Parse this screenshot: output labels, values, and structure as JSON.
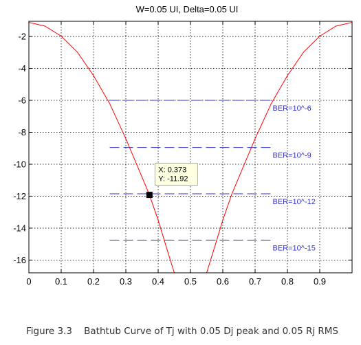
{
  "chart_data": {
    "type": "line",
    "title": "W=0.05 UI, Delta=0.05 UI",
    "xlabel": "",
    "ylabel": "",
    "xlim": [
      0,
      1
    ],
    "ylim": [
      -16.8,
      -1.05
    ],
    "xticks": [
      0,
      0.1,
      0.2,
      0.3,
      0.4,
      0.5,
      0.6,
      0.7,
      0.8,
      0.9
    ],
    "xtick_labels": [
      "0",
      "0.1",
      "0.2",
      "0.3",
      "0.4",
      "0.5",
      "0.6",
      "0.7",
      "0.8",
      "0.9"
    ],
    "yticks": [
      -2,
      -4,
      -6,
      -8,
      -10,
      -12,
      -14,
      -16
    ],
    "ytick_labels": [
      "-2",
      "-4",
      "-6",
      "-8",
      "-10",
      "-12",
      "-14",
      "-16"
    ],
    "grid": true,
    "series": [
      {
        "color": "#ff0000",
        "x": [
          0,
          0.05,
          0.1,
          0.15,
          0.2,
          0.25,
          0.3,
          0.35,
          0.373,
          0.4,
          0.43,
          0.45
        ],
        "y": [
          -1.12,
          -1.35,
          -1.98,
          -2.98,
          -4.45,
          -6.2,
          -8.4,
          -10.8,
          -11.92,
          -13.5,
          -15.5,
          -16.8
        ]
      },
      {
        "color": "#ff0000",
        "x": [
          0.55,
          0.57,
          0.6,
          0.627,
          0.65,
          0.7,
          0.75,
          0.8,
          0.85,
          0.9,
          0.95,
          1.0
        ],
        "y": [
          -16.8,
          -15.5,
          -13.5,
          -11.92,
          -10.8,
          -8.4,
          -6.2,
          -4.45,
          -2.98,
          -1.98,
          -1.35,
          -1.12
        ]
      }
    ],
    "reference_lines": [
      {
        "label": "BER=10^-6",
        "y": -6.0,
        "x_start": 0.25,
        "x_end": 0.75,
        "color": "#3333cc"
      },
      {
        "label": "BER=10^-9",
        "y": -8.95,
        "x_start": 0.25,
        "x_end": 0.75,
        "color": "#3333cc"
      },
      {
        "label": "BER=10^-12",
        "y": -11.85,
        "x_start": 0.25,
        "x_end": 0.75,
        "color": "#3333cc"
      },
      {
        "label": "BER=10^-15",
        "y": -14.75,
        "x_start": 0.25,
        "x_end": 0.75,
        "color": "#3333cc"
      }
    ],
    "datatip": {
      "x": 0.373,
      "y": -11.92,
      "x_text": "X: 0.373",
      "y_text": "Y: -11.92"
    }
  },
  "caption": "Figure 3.3    Bathtub Curve of Tj with 0.05 Dj peak and 0.05 Rj RMS"
}
